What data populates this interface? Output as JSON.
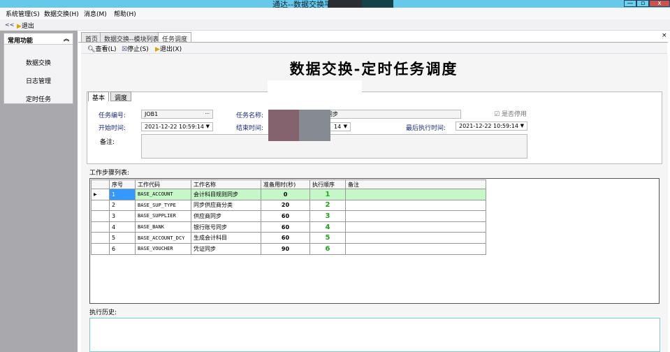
{
  "window": {
    "title": "通达--数据交换平",
    "controls": [
      "—",
      "▫",
      "x"
    ]
  },
  "menu": [
    "系统管理(S)",
    "数据交换(H)",
    "消息(M)",
    "帮助(H)"
  ],
  "toolbar": {
    "collapse": "<<",
    "exit": "退出"
  },
  "sidebar": {
    "header": "常用功能",
    "collapse_icon": "double-chevron-up",
    "items": [
      "数据交换",
      "日志管理",
      "定时任务"
    ]
  },
  "tabs": [
    "首页",
    "数据交换--模块列表",
    "任务调度"
  ],
  "active_tab": 2,
  "main_toolbar": {
    "view": "查看(L)",
    "stop": "停止(S)",
    "exit": "退出(X)"
  },
  "page_title": "数据交换-定时任务调度",
  "inner_tabs": [
    "基本",
    "调度"
  ],
  "form": {
    "task_no_label": "任务编号:",
    "task_no": "JOB1",
    "task_name_label": "任务名称:",
    "task_name": "证同步",
    "disabled_label": "是否停用",
    "disabled": true,
    "start_label": "开始时间:",
    "start": "2021-12-22 10:59:14",
    "end_label": "结束时间:",
    "end": "14",
    "last_label": "最后执行时间:",
    "last": "2021-12-22 10:59:14",
    "remark_label": "备注:"
  },
  "steps": {
    "label": "工作步骤列表:",
    "columns": [
      "序号",
      "工作代码",
      "工作名称",
      "准备用时(秒)",
      "执行顺序",
      "备注"
    ],
    "rows": [
      [
        "1",
        "BASE_ACCOUNT",
        "会计科目规则同步",
        "0",
        "1",
        ""
      ],
      [
        "2",
        "BASE_SUP_TYPE",
        "同步供应商分类",
        "20",
        "2",
        ""
      ],
      [
        "3",
        "BASE_SUPPLIER",
        "供应商同步",
        "60",
        "3",
        ""
      ],
      [
        "4",
        "BASE_BANK",
        "银行账号同步",
        "60",
        "4",
        ""
      ],
      [
        "5",
        "BASE_ACCOUNT_DCY",
        "生成会计科目",
        "60",
        "5",
        ""
      ],
      [
        "6",
        "BASE_VOUCHER",
        "凭证同步",
        "90",
        "6",
        ""
      ]
    ]
  },
  "history": {
    "label": "执行历史:"
  }
}
